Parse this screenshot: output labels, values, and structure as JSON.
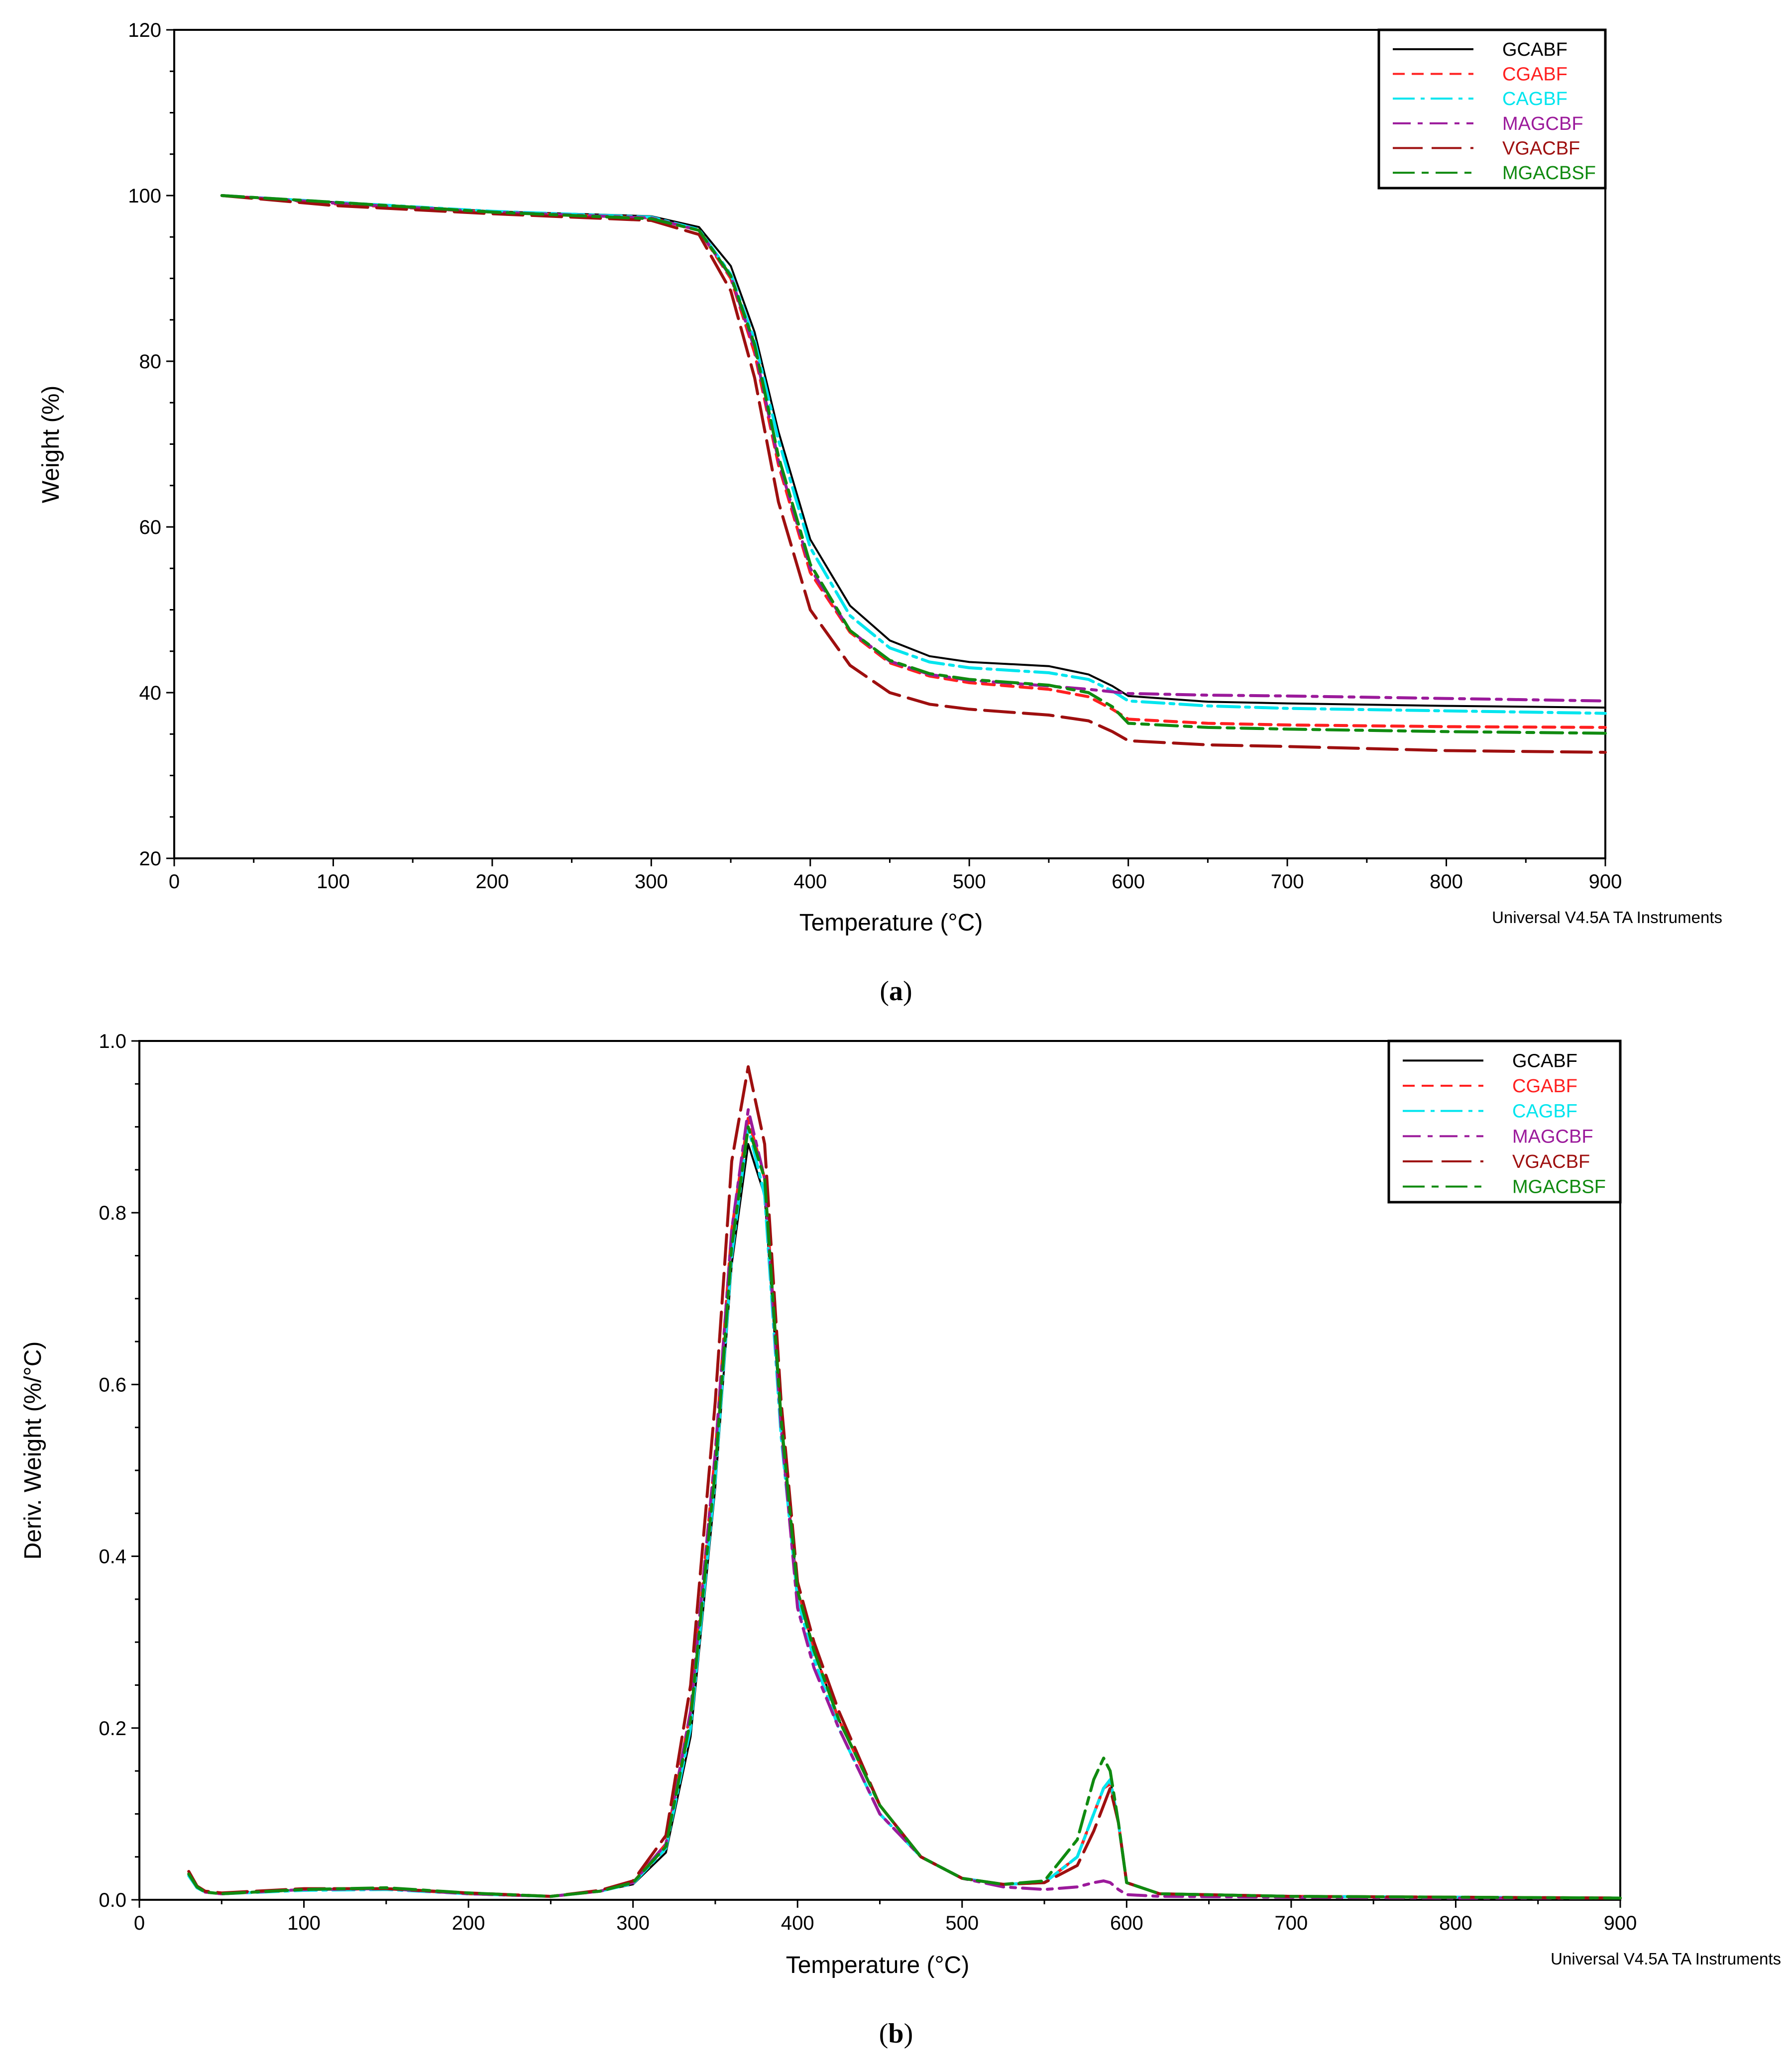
{
  "series_styles": [
    {
      "name": "GCABF",
      "color": "#000000",
      "dash": ""
    },
    {
      "name": "CGABF",
      "color": "#ff2020",
      "dash": "24,14"
    },
    {
      "name": "CAGBF",
      "color": "#00e5ee",
      "dash": "44,12,8,12"
    },
    {
      "name": "MAGCBF",
      "color": "#9b1a9b",
      "dash": "36,14,10,14"
    },
    {
      "name": "VGACBF",
      "color": "#9e0f0f",
      "dash": "60,18"
    },
    {
      "name": "MGACBSF",
      "color": "#108a10",
      "dash": "44,14,14,14"
    }
  ],
  "chart_data": [
    {
      "type": "line",
      "title": "",
      "xlabel": "Temperature (°C)",
      "ylabel": "Weight (%)",
      "xlim": [
        0,
        900
      ],
      "ylim": [
        20,
        120
      ],
      "xticks": [
        0,
        100,
        200,
        300,
        400,
        500,
        600,
        700,
        800,
        900
      ],
      "yticks": [
        20,
        40,
        60,
        80,
        100,
        120
      ],
      "legend_position": "top-right",
      "software_label": "Universal V4.5A TA Instruments",
      "caption": "a",
      "series": [
        {
          "name": "GCABF",
          "x": [
            30,
            100,
            200,
            300,
            330,
            350,
            365,
            380,
            400,
            425,
            450,
            475,
            500,
            550,
            575,
            590,
            600,
            650,
            700,
            800,
            900
          ],
          "y": [
            100,
            99.2,
            98.1,
            97.5,
            96.2,
            91.5,
            83.5,
            71.5,
            58.5,
            50.5,
            46.3,
            44.4,
            43.7,
            43.2,
            42.2,
            40.8,
            39.6,
            38.9,
            38.7,
            38.4,
            38.2
          ]
        },
        {
          "name": "CGABF",
          "x": [
            30,
            100,
            200,
            300,
            330,
            350,
            365,
            380,
            400,
            425,
            450,
            475,
            500,
            550,
            575,
            590,
            600,
            650,
            700,
            800,
            900
          ],
          "y": [
            100,
            99.0,
            98.0,
            97.3,
            95.8,
            90.0,
            81.0,
            67.5,
            54.5,
            47.3,
            43.6,
            42.0,
            41.2,
            40.4,
            39.5,
            38.0,
            36.8,
            36.3,
            36.1,
            35.9,
            35.8
          ]
        },
        {
          "name": "CAGBF",
          "x": [
            30,
            100,
            200,
            300,
            330,
            350,
            365,
            380,
            400,
            425,
            450,
            475,
            500,
            550,
            575,
            590,
            600,
            650,
            700,
            800,
            900
          ],
          "y": [
            100,
            99.2,
            98.1,
            97.4,
            95.9,
            90.5,
            82.5,
            70.5,
            57.5,
            49.3,
            45.4,
            43.7,
            43.0,
            42.4,
            41.6,
            40.2,
            39.0,
            38.4,
            38.1,
            37.8,
            37.5
          ]
        },
        {
          "name": "MAGCBF",
          "x": [
            30,
            100,
            200,
            300,
            330,
            350,
            365,
            380,
            400,
            425,
            450,
            475,
            500,
            550,
            575,
            590,
            600,
            650,
            700,
            800,
            900
          ],
          "y": [
            100,
            99.1,
            98.0,
            97.3,
            95.8,
            90.2,
            81.5,
            68.0,
            55.0,
            47.5,
            43.8,
            42.2,
            41.5,
            40.8,
            40.4,
            40.1,
            39.9,
            39.7,
            39.6,
            39.3,
            39.0
          ]
        },
        {
          "name": "VGACBF",
          "x": [
            30,
            100,
            200,
            300,
            330,
            350,
            365,
            380,
            400,
            425,
            450,
            475,
            500,
            550,
            575,
            590,
            600,
            650,
            700,
            800,
            900
          ],
          "y": [
            100,
            98.8,
            97.8,
            97.0,
            95.3,
            88.5,
            78.0,
            63.0,
            50.0,
            43.3,
            40.0,
            38.6,
            38.0,
            37.3,
            36.6,
            35.3,
            34.2,
            33.7,
            33.5,
            33.0,
            32.8
          ]
        },
        {
          "name": "MGACBSF",
          "x": [
            30,
            100,
            200,
            300,
            330,
            350,
            365,
            380,
            400,
            425,
            450,
            475,
            500,
            550,
            575,
            590,
            600,
            650,
            700,
            800,
            900
          ],
          "y": [
            100,
            99.2,
            98.0,
            97.2,
            95.8,
            90.3,
            82.0,
            68.5,
            55.5,
            47.5,
            43.9,
            42.3,
            41.6,
            40.9,
            40.0,
            38.3,
            36.3,
            35.8,
            35.6,
            35.3,
            35.1
          ]
        }
      ]
    },
    {
      "type": "line",
      "title": "",
      "xlabel": "Temperature (°C)",
      "ylabel": "Deriv. Weight (%/°C)",
      "xlim": [
        0,
        900
      ],
      "ylim": [
        0.0,
        1.0
      ],
      "xticks": [
        0,
        100,
        200,
        300,
        400,
        500,
        600,
        700,
        800,
        900
      ],
      "yticks": [
        "0.0",
        "0.2",
        "0.4",
        "0.6",
        "0.8",
        "1.0"
      ],
      "legend_position": "top-right",
      "software_label": "Universal V4.5A TA Instruments",
      "caption": "b",
      "series": [
        {
          "name": "GCABF",
          "x": [
            30,
            35,
            40,
            50,
            100,
            150,
            200,
            250,
            280,
            300,
            320,
            335,
            350,
            360,
            370,
            380,
            390,
            400,
            410,
            425,
            450,
            475,
            500,
            525,
            550,
            570,
            580,
            586,
            590,
            595,
            600,
            620,
            700,
            800,
            900
          ],
          "y": [
            0.03,
            0.015,
            0.009,
            0.007,
            0.012,
            0.013,
            0.007,
            0.004,
            0.01,
            0.018,
            0.055,
            0.19,
            0.48,
            0.74,
            0.88,
            0.82,
            0.55,
            0.36,
            0.29,
            0.21,
            0.11,
            0.05,
            0.025,
            0.018,
            0.02,
            0.05,
            0.1,
            0.13,
            0.14,
            0.09,
            0.02,
            0.007,
            0.004,
            0.003,
            0.002
          ]
        },
        {
          "name": "CGABF",
          "x": [
            30,
            35,
            40,
            50,
            100,
            150,
            200,
            250,
            280,
            300,
            320,
            335,
            350,
            360,
            370,
            380,
            390,
            400,
            410,
            425,
            450,
            475,
            500,
            525,
            550,
            570,
            580,
            586,
            590,
            595,
            600,
            620,
            700,
            800,
            900
          ],
          "y": [
            0.03,
            0.015,
            0.009,
            0.007,
            0.012,
            0.013,
            0.007,
            0.004,
            0.01,
            0.02,
            0.065,
            0.22,
            0.52,
            0.78,
            0.91,
            0.84,
            0.56,
            0.36,
            0.29,
            0.21,
            0.11,
            0.05,
            0.025,
            0.018,
            0.02,
            0.05,
            0.1,
            0.13,
            0.135,
            0.09,
            0.02,
            0.007,
            0.004,
            0.003,
            0.002
          ]
        },
        {
          "name": "CAGBF",
          "x": [
            30,
            35,
            40,
            50,
            100,
            150,
            200,
            250,
            280,
            300,
            320,
            335,
            350,
            360,
            370,
            380,
            390,
            400,
            410,
            425,
            450,
            475,
            500,
            525,
            550,
            570,
            580,
            586,
            590,
            595,
            600,
            620,
            700,
            800,
            900
          ],
          "y": [
            0.028,
            0.014,
            0.009,
            0.007,
            0.011,
            0.012,
            0.007,
            0.004,
            0.01,
            0.019,
            0.06,
            0.2,
            0.49,
            0.75,
            0.9,
            0.82,
            0.54,
            0.35,
            0.28,
            0.2,
            0.1,
            0.05,
            0.025,
            0.018,
            0.02,
            0.05,
            0.1,
            0.13,
            0.14,
            0.09,
            0.02,
            0.007,
            0.004,
            0.003,
            0.002
          ]
        },
        {
          "name": "MAGCBF",
          "x": [
            30,
            35,
            40,
            50,
            100,
            150,
            200,
            250,
            280,
            300,
            320,
            335,
            350,
            360,
            370,
            380,
            390,
            400,
            410,
            425,
            450,
            475,
            500,
            525,
            550,
            570,
            580,
            586,
            590,
            595,
            600,
            620,
            700,
            800,
            900
          ],
          "y": [
            0.03,
            0.015,
            0.009,
            0.007,
            0.012,
            0.013,
            0.007,
            0.004,
            0.01,
            0.02,
            0.065,
            0.22,
            0.52,
            0.78,
            0.92,
            0.84,
            0.55,
            0.34,
            0.27,
            0.2,
            0.1,
            0.05,
            0.025,
            0.015,
            0.012,
            0.015,
            0.02,
            0.022,
            0.02,
            0.012,
            0.006,
            0.004,
            0.003,
            0.002,
            0.002
          ]
        },
        {
          "name": "VGACBF",
          "x": [
            30,
            35,
            40,
            50,
            100,
            150,
            200,
            250,
            280,
            300,
            320,
            335,
            350,
            360,
            370,
            380,
            390,
            400,
            410,
            425,
            450,
            475,
            500,
            525,
            550,
            570,
            580,
            586,
            590,
            595,
            600,
            620,
            700,
            800,
            900
          ],
          "y": [
            0.033,
            0.016,
            0.01,
            0.008,
            0.013,
            0.013,
            0.008,
            0.004,
            0.011,
            0.022,
            0.075,
            0.25,
            0.58,
            0.86,
            0.97,
            0.88,
            0.58,
            0.37,
            0.3,
            0.22,
            0.11,
            0.05,
            0.025,
            0.018,
            0.02,
            0.04,
            0.08,
            0.11,
            0.13,
            0.09,
            0.02,
            0.007,
            0.004,
            0.003,
            0.002
          ]
        },
        {
          "name": "MGACBSF",
          "x": [
            30,
            35,
            40,
            50,
            100,
            150,
            200,
            250,
            280,
            300,
            320,
            335,
            350,
            360,
            370,
            380,
            390,
            400,
            410,
            425,
            450,
            475,
            500,
            525,
            550,
            570,
            580,
            586,
            590,
            595,
            600,
            620,
            700,
            800,
            900
          ],
          "y": [
            0.03,
            0.015,
            0.009,
            0.007,
            0.012,
            0.014,
            0.008,
            0.004,
            0.01,
            0.02,
            0.062,
            0.21,
            0.5,
            0.76,
            0.9,
            0.84,
            0.56,
            0.36,
            0.29,
            0.21,
            0.11,
            0.05,
            0.025,
            0.018,
            0.022,
            0.07,
            0.14,
            0.165,
            0.15,
            0.09,
            0.02,
            0.007,
            0.004,
            0.003,
            0.002
          ]
        }
      ]
    }
  ]
}
